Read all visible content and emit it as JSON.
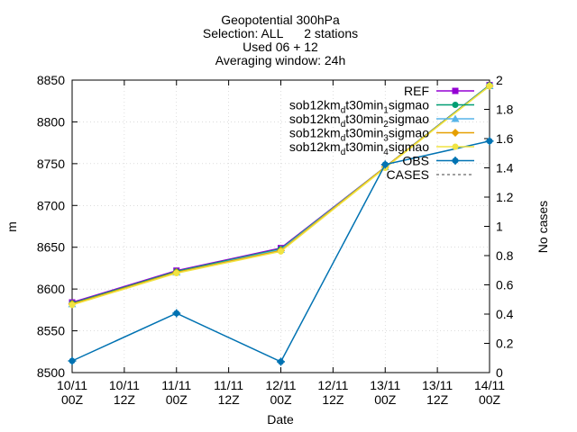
{
  "chart_data": {
    "type": "line",
    "title_lines": [
      "Geopotential 300hPa",
      "Selection: ALL      2 stations",
      "Used 06 + 12",
      "Averaging window: 24h"
    ],
    "xlabel": "Date",
    "ylabel": "m",
    "y2label": "No cases",
    "ylim": [
      8500,
      8850
    ],
    "y2lim": [
      0,
      2
    ],
    "yticks": [
      8500,
      8550,
      8600,
      8650,
      8700,
      8750,
      8800,
      8850
    ],
    "y2ticks": [
      "0",
      "0.2",
      "0.4",
      "0.6",
      "0.8",
      "1",
      "1.2",
      "1.4",
      "1.6",
      "1.8",
      "2"
    ],
    "x_ticks": [
      {
        "d": "10/11",
        "t": "00Z"
      },
      {
        "d": "10/11",
        "t": "12Z"
      },
      {
        "d": "11/11",
        "t": "00Z"
      },
      {
        "d": "11/11",
        "t": "12Z"
      },
      {
        "d": "12/11",
        "t": "00Z"
      },
      {
        "d": "12/11",
        "t": "12Z"
      },
      {
        "d": "13/11",
        "t": "00Z"
      },
      {
        "d": "13/11",
        "t": "12Z"
      },
      {
        "d": "14/11",
        "t": "00Z"
      }
    ],
    "x": [
      0,
      2,
      4,
      6,
      8
    ],
    "grid": true,
    "legend_position": "top-right",
    "series": [
      {
        "name": "REF",
        "name_main": "REF",
        "name_sub": "",
        "name_rest": "",
        "color": "#9400d3",
        "marker": "square",
        "values": [
          8584,
          8622,
          8649,
          8746,
          8844
        ]
      },
      {
        "name": "sob12km_dt30min_1sigmao",
        "name_main": "sob12km",
        "name_sub": "d",
        "name_rest": "t30min",
        "name_sub2": "1",
        "name_tail": "sigmao",
        "color": "#009e73",
        "marker": "circle",
        "values": [
          8583,
          8621,
          8648,
          8746,
          8844
        ]
      },
      {
        "name": "sob12km_dt30min_2sigmao",
        "name_main": "sob12km",
        "name_sub": "d",
        "name_rest": "t30min",
        "name_sub2": "2",
        "name_tail": "sigmao",
        "color": "#56b4e9",
        "marker": "triangle",
        "values": [
          8582,
          8620,
          8647,
          8746,
          8843
        ]
      },
      {
        "name": "sob12km_dt30min_3sigmao",
        "name_main": "sob12km",
        "name_sub": "d",
        "name_rest": "t30min",
        "name_sub2": "3",
        "name_tail": "sigmao",
        "color": "#e69f00",
        "marker": "diamond",
        "values": [
          8582,
          8620,
          8646,
          8746,
          8843
        ]
      },
      {
        "name": "sob12km_dt30min_4sigmao",
        "name_main": "sob12km",
        "name_sub": "d",
        "name_rest": "t30min",
        "name_sub2": "4",
        "name_tail": "sigmao",
        "color": "#f0e442",
        "marker": "circle",
        "values": [
          8581,
          8619,
          8645,
          8745,
          8843
        ]
      },
      {
        "name": "OBS",
        "name_main": "OBS",
        "name_sub": "",
        "name_rest": "",
        "color": "#0072b2",
        "marker": "star",
        "values": [
          8514,
          8571,
          8513,
          8749,
          8777
        ]
      }
    ],
    "cases_series": {
      "name": "CASES",
      "color": "#808080",
      "dashed": true
    }
  }
}
